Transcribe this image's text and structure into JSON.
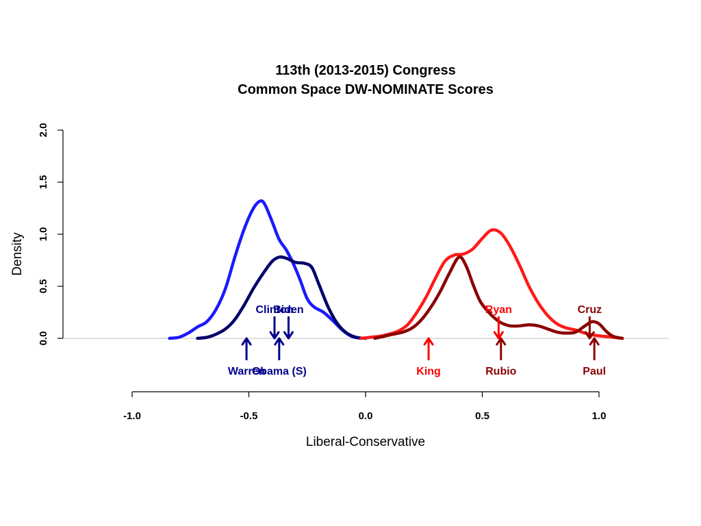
{
  "chart_data": {
    "type": "line",
    "title": [
      "113th (2013-2015) Congress",
      "Common Space DW-NOMINATE Scores"
    ],
    "xlabel": "Liberal-Conservative",
    "ylabel": "Density",
    "xlim": [
      -1.0,
      1.1
    ],
    "ylim": [
      0.0,
      2.0
    ],
    "x_ticks": [
      -1.0,
      -0.5,
      0.0,
      0.5,
      1.0
    ],
    "x_tick_labels": [
      "-1.0",
      "-0.5",
      "0.0",
      "0.5",
      "1.0"
    ],
    "y_ticks": [
      0.0,
      0.5,
      1.0,
      1.5,
      2.0
    ],
    "y_tick_labels": [
      "0.0",
      "0.5",
      "1.0",
      "1.5",
      "2.0"
    ],
    "grid": false,
    "series": [
      {
        "color": "#1a1aff",
        "points": [
          [
            -0.84,
            0.0
          ],
          [
            -0.8,
            0.01
          ],
          [
            -0.76,
            0.05
          ],
          [
            -0.72,
            0.11
          ],
          [
            -0.68,
            0.16
          ],
          [
            -0.64,
            0.28
          ],
          [
            -0.6,
            0.48
          ],
          [
            -0.56,
            0.78
          ],
          [
            -0.52,
            1.05
          ],
          [
            -0.48,
            1.25
          ],
          [
            -0.45,
            1.32
          ],
          [
            -0.43,
            1.28
          ],
          [
            -0.4,
            1.12
          ],
          [
            -0.37,
            0.95
          ],
          [
            -0.34,
            0.85
          ],
          [
            -0.31,
            0.72
          ],
          [
            -0.28,
            0.56
          ],
          [
            -0.25,
            0.38
          ],
          [
            -0.22,
            0.3
          ],
          [
            -0.18,
            0.25
          ],
          [
            -0.14,
            0.17
          ],
          [
            -0.1,
            0.08
          ],
          [
            -0.06,
            0.02
          ],
          [
            -0.02,
            0.0
          ]
        ]
      },
      {
        "color": "#00006b",
        "points": [
          [
            -0.72,
            0.0
          ],
          [
            -0.68,
            0.01
          ],
          [
            -0.64,
            0.04
          ],
          [
            -0.6,
            0.09
          ],
          [
            -0.56,
            0.18
          ],
          [
            -0.52,
            0.32
          ],
          [
            -0.48,
            0.48
          ],
          [
            -0.44,
            0.62
          ],
          [
            -0.4,
            0.74
          ],
          [
            -0.37,
            0.78
          ],
          [
            -0.34,
            0.77
          ],
          [
            -0.3,
            0.73
          ],
          [
            -0.26,
            0.72
          ],
          [
            -0.23,
            0.68
          ],
          [
            -0.2,
            0.52
          ],
          [
            -0.16,
            0.3
          ],
          [
            -0.12,
            0.14
          ],
          [
            -0.08,
            0.05
          ],
          [
            -0.04,
            0.01
          ],
          [
            0.0,
            0.0
          ]
        ]
      },
      {
        "color": "#ff1a1a",
        "points": [
          [
            -0.02,
            0.0
          ],
          [
            0.02,
            0.01
          ],
          [
            0.06,
            0.02
          ],
          [
            0.1,
            0.04
          ],
          [
            0.14,
            0.07
          ],
          [
            0.18,
            0.13
          ],
          [
            0.22,
            0.25
          ],
          [
            0.26,
            0.4
          ],
          [
            0.3,
            0.58
          ],
          [
            0.34,
            0.74
          ],
          [
            0.38,
            0.8
          ],
          [
            0.42,
            0.81
          ],
          [
            0.46,
            0.86
          ],
          [
            0.5,
            0.96
          ],
          [
            0.54,
            1.04
          ],
          [
            0.58,
            1.01
          ],
          [
            0.62,
            0.88
          ],
          [
            0.66,
            0.7
          ],
          [
            0.7,
            0.5
          ],
          [
            0.74,
            0.34
          ],
          [
            0.78,
            0.22
          ],
          [
            0.82,
            0.14
          ],
          [
            0.86,
            0.1
          ],
          [
            0.9,
            0.08
          ],
          [
            0.94,
            0.05
          ],
          [
            0.98,
            0.03
          ],
          [
            1.02,
            0.02
          ],
          [
            1.06,
            0.01
          ],
          [
            1.1,
            0.0
          ]
        ]
      },
      {
        "color": "#8b0000",
        "points": [
          [
            0.04,
            0.0
          ],
          [
            0.08,
            0.02
          ],
          [
            0.12,
            0.04
          ],
          [
            0.16,
            0.06
          ],
          [
            0.2,
            0.1
          ],
          [
            0.24,
            0.18
          ],
          [
            0.28,
            0.3
          ],
          [
            0.32,
            0.45
          ],
          [
            0.36,
            0.63
          ],
          [
            0.4,
            0.78
          ],
          [
            0.43,
            0.7
          ],
          [
            0.46,
            0.52
          ],
          [
            0.49,
            0.36
          ],
          [
            0.52,
            0.27
          ],
          [
            0.55,
            0.2
          ],
          [
            0.58,
            0.15
          ],
          [
            0.62,
            0.12
          ],
          [
            0.66,
            0.12
          ],
          [
            0.7,
            0.13
          ],
          [
            0.74,
            0.12
          ],
          [
            0.78,
            0.09
          ],
          [
            0.82,
            0.06
          ],
          [
            0.86,
            0.05
          ],
          [
            0.9,
            0.06
          ],
          [
            0.94,
            0.12
          ],
          [
            0.97,
            0.16
          ],
          [
            1.0,
            0.14
          ],
          [
            1.03,
            0.07
          ],
          [
            1.06,
            0.02
          ],
          [
            1.1,
            0.0
          ]
        ]
      }
    ],
    "annotations": [
      {
        "label": "Clinton",
        "x": -0.39,
        "direction": "down",
        "label_position": "above",
        "color": "#00008b"
      },
      {
        "label": "Biden",
        "x": -0.33,
        "direction": "down",
        "label_position": "above",
        "color": "#00008b"
      },
      {
        "label": "Warren",
        "x": -0.51,
        "direction": "up",
        "label_position": "below",
        "color": "#00008b"
      },
      {
        "label": "Obama (S)",
        "x": -0.37,
        "direction": "up",
        "label_position": "below",
        "color": "#00008b"
      },
      {
        "label": "King",
        "x": 0.27,
        "direction": "up",
        "label_position": "below",
        "color": "#ff0000"
      },
      {
        "label": "Ryan",
        "x": 0.57,
        "direction": "down",
        "label_position": "above",
        "color": "#ff0000"
      },
      {
        "label": "Rubio",
        "x": 0.58,
        "direction": "up",
        "label_position": "below",
        "color": "#8b0000"
      },
      {
        "label": "Cruz",
        "x": 0.96,
        "direction": "down",
        "label_position": "above",
        "color": "#8b0000"
      },
      {
        "label": "Paul",
        "x": 0.98,
        "direction": "up",
        "label_position": "below",
        "color": "#8b0000"
      }
    ]
  }
}
